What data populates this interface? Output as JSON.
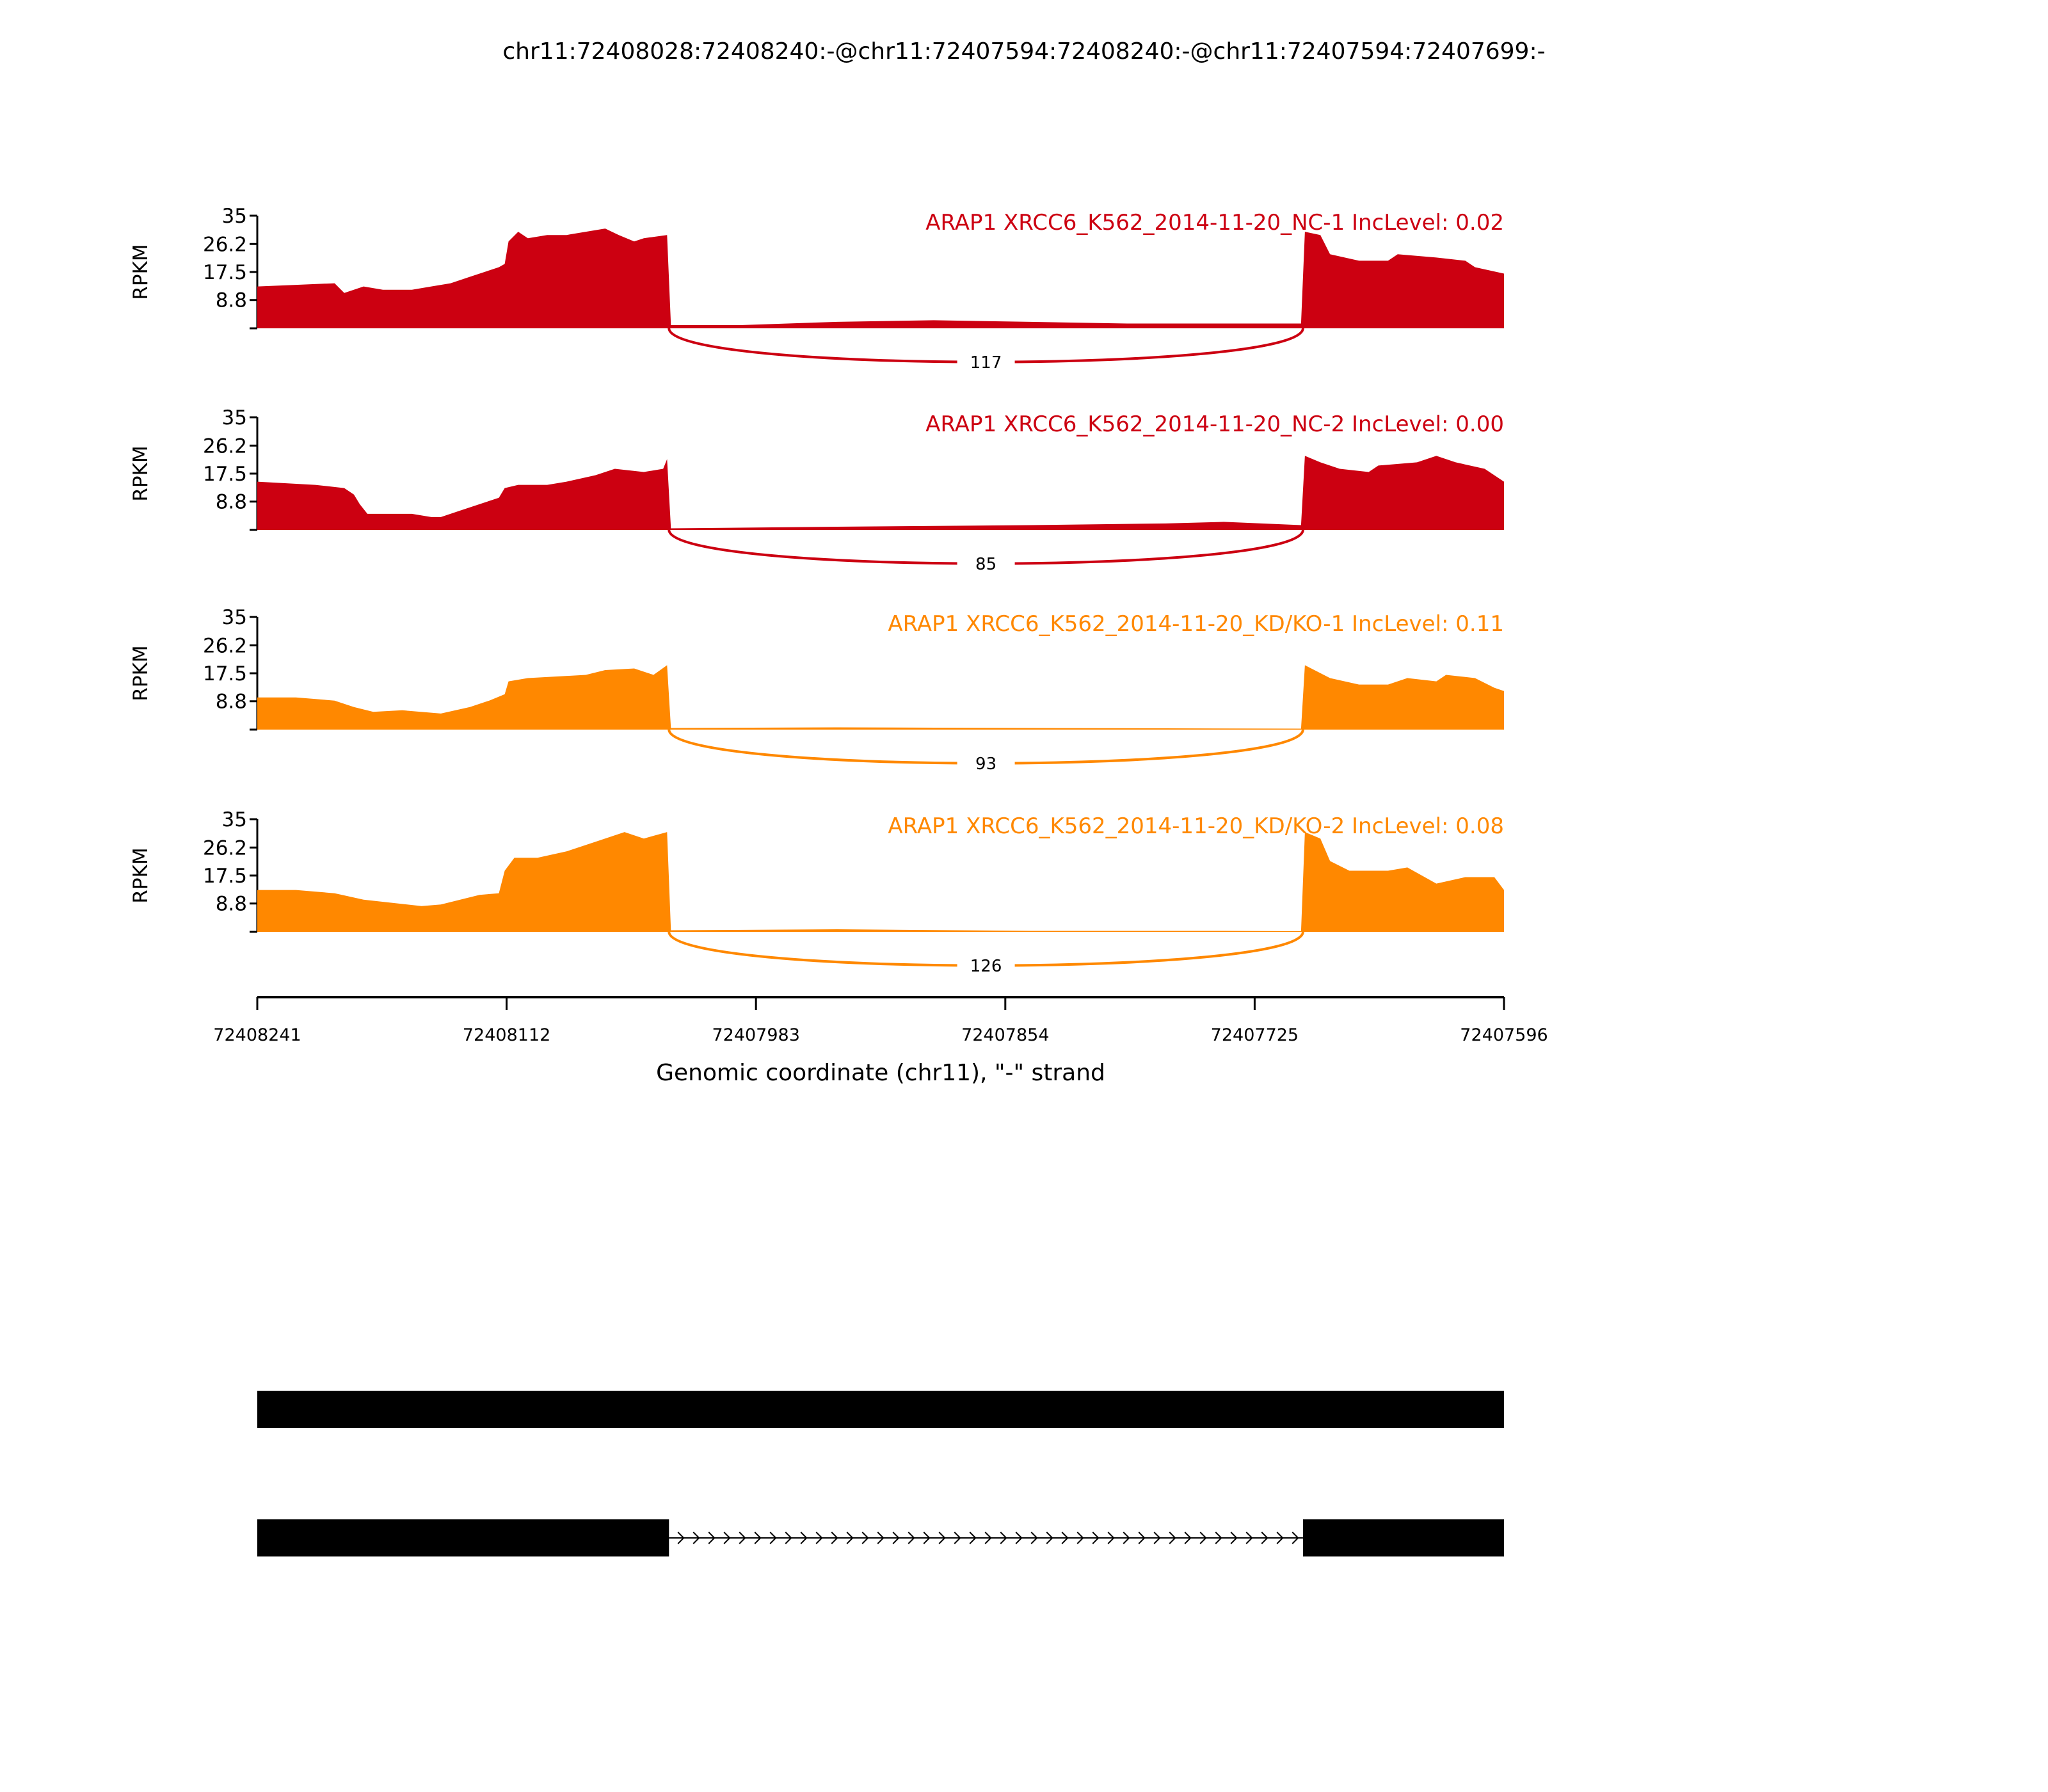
{
  "chart_data": {
    "type": "area",
    "title": "chr11:72408028:72408240:-@chr11:72407594:72408240:-@chr11:72407594:72407699:-",
    "xlabel": "Genomic coordinate (chr11), \"-\" strand",
    "ylabel": "RPKM",
    "x_start": 72408241,
    "x_end": 72407596,
    "xticks": [
      "72408241",
      "72408112",
      "72407983",
      "72407854",
      "72407725",
      "72407596"
    ],
    "yticks": [
      "8.8",
      "17.5",
      "26.2",
      "35"
    ],
    "ylim": [
      0,
      35
    ],
    "exon1_end_offset": 213,
    "exon3_start_offset": 541,
    "series": [
      {
        "name": "ARAP1 XRCC6_K562_2014-11-20_NC-1 IncLevel: 0.02",
        "color": "#CC0011",
        "junction_count": "117",
        "points": [
          [
            0,
            13
          ],
          [
            20,
            13.5
          ],
          [
            40,
            14
          ],
          [
            45,
            11
          ],
          [
            55,
            13
          ],
          [
            65,
            12
          ],
          [
            80,
            12
          ],
          [
            90,
            13
          ],
          [
            100,
            14
          ],
          [
            110,
            16
          ],
          [
            120,
            18
          ],
          [
            125,
            19
          ],
          [
            128,
            20
          ],
          [
            130,
            27
          ],
          [
            135,
            30
          ],
          [
            140,
            28
          ],
          [
            150,
            29
          ],
          [
            160,
            29
          ],
          [
            170,
            30
          ],
          [
            180,
            31
          ],
          [
            187,
            29
          ],
          [
            195,
            27
          ],
          [
            200,
            28
          ],
          [
            212,
            29
          ],
          [
            214,
            1
          ],
          [
            250,
            1
          ],
          [
            300,
            2
          ],
          [
            350,
            2.5
          ],
          [
            400,
            2
          ],
          [
            450,
            1.5
          ],
          [
            500,
            1.5
          ],
          [
            540,
            1.5
          ],
          [
            542,
            30
          ],
          [
            550,
            29
          ],
          [
            555,
            23
          ],
          [
            570,
            21
          ],
          [
            585,
            21
          ],
          [
            590,
            23
          ],
          [
            610,
            22
          ],
          [
            625,
            21
          ],
          [
            630,
            19
          ],
          [
            645,
            17
          ]
        ]
      },
      {
        "name": "ARAP1 XRCC6_K562_2014-11-20_NC-2 IncLevel: 0.00",
        "color": "#CC0011",
        "junction_count": "85",
        "points": [
          [
            0,
            15
          ],
          [
            30,
            14
          ],
          [
            45,
            13
          ],
          [
            50,
            11
          ],
          [
            53,
            8
          ],
          [
            57,
            5
          ],
          [
            80,
            5
          ],
          [
            90,
            4
          ],
          [
            95,
            4
          ],
          [
            105,
            6
          ],
          [
            115,
            8
          ],
          [
            125,
            10
          ],
          [
            128,
            13
          ],
          [
            135,
            14
          ],
          [
            150,
            14
          ],
          [
            160,
            15
          ],
          [
            175,
            17
          ],
          [
            185,
            19
          ],
          [
            200,
            18
          ],
          [
            210,
            19
          ],
          [
            212,
            22
          ],
          [
            214,
            0.5
          ],
          [
            300,
            1
          ],
          [
            400,
            1.5
          ],
          [
            470,
            2
          ],
          [
            500,
            2.5
          ],
          [
            540,
            1.5
          ],
          [
            542,
            23
          ],
          [
            550,
            21
          ],
          [
            560,
            19
          ],
          [
            575,
            18
          ],
          [
            580,
            20
          ],
          [
            600,
            21
          ],
          [
            610,
            23
          ],
          [
            620,
            21
          ],
          [
            635,
            19
          ],
          [
            645,
            15
          ]
        ]
      },
      {
        "name": "ARAP1 XRCC6_K562_2014-11-20_KD/KO-1 IncLevel: 0.11",
        "color": "#FF8800",
        "junction_count": "93",
        "points": [
          [
            0,
            10
          ],
          [
            20,
            10
          ],
          [
            40,
            9
          ],
          [
            50,
            7
          ],
          [
            60,
            5.5
          ],
          [
            75,
            6
          ],
          [
            95,
            5
          ],
          [
            110,
            7
          ],
          [
            120,
            9
          ],
          [
            128,
            11
          ],
          [
            130,
            15
          ],
          [
            140,
            16
          ],
          [
            155,
            16.5
          ],
          [
            170,
            17
          ],
          [
            180,
            18.5
          ],
          [
            195,
            19
          ],
          [
            205,
            17
          ],
          [
            212,
            20
          ],
          [
            214,
            0.5
          ],
          [
            300,
            0.7
          ],
          [
            400,
            0.5
          ],
          [
            540,
            0.3
          ],
          [
            542,
            20
          ],
          [
            555,
            16
          ],
          [
            570,
            14
          ],
          [
            585,
            14
          ],
          [
            595,
            16
          ],
          [
            610,
            15
          ],
          [
            615,
            17
          ],
          [
            630,
            16
          ],
          [
            640,
            13
          ],
          [
            645,
            12
          ]
        ]
      },
      {
        "name": "ARAP1 XRCC6_K562_2014-11-20_KD/KO-2 IncLevel: 0.08",
        "color": "#FF8800",
        "junction_count": "126",
        "points": [
          [
            0,
            13
          ],
          [
            20,
            13
          ],
          [
            40,
            12
          ],
          [
            55,
            10
          ],
          [
            70,
            9
          ],
          [
            85,
            8
          ],
          [
            95,
            8.5
          ],
          [
            105,
            10
          ],
          [
            115,
            11.5
          ],
          [
            125,
            12
          ],
          [
            128,
            19
          ],
          [
            133,
            23
          ],
          [
            145,
            23
          ],
          [
            160,
            25
          ],
          [
            175,
            28
          ],
          [
            190,
            31
          ],
          [
            200,
            29
          ],
          [
            212,
            31
          ],
          [
            214,
            0.5
          ],
          [
            300,
            0.8
          ],
          [
            400,
            0.3
          ],
          [
            500,
            0.3
          ],
          [
            540,
            0.2
          ],
          [
            542,
            31
          ],
          [
            550,
            29
          ],
          [
            555,
            22
          ],
          [
            565,
            19
          ],
          [
            585,
            19
          ],
          [
            595,
            20
          ],
          [
            610,
            15
          ],
          [
            625,
            17
          ],
          [
            640,
            17
          ],
          [
            645,
            13
          ]
        ]
      }
    ],
    "gene_models": [
      {
        "exons": [
          [
            0,
            647
          ]
        ]
      },
      {
        "exons": [
          [
            0,
            213
          ],
          [
            541,
            647
          ]
        ]
      }
    ]
  }
}
